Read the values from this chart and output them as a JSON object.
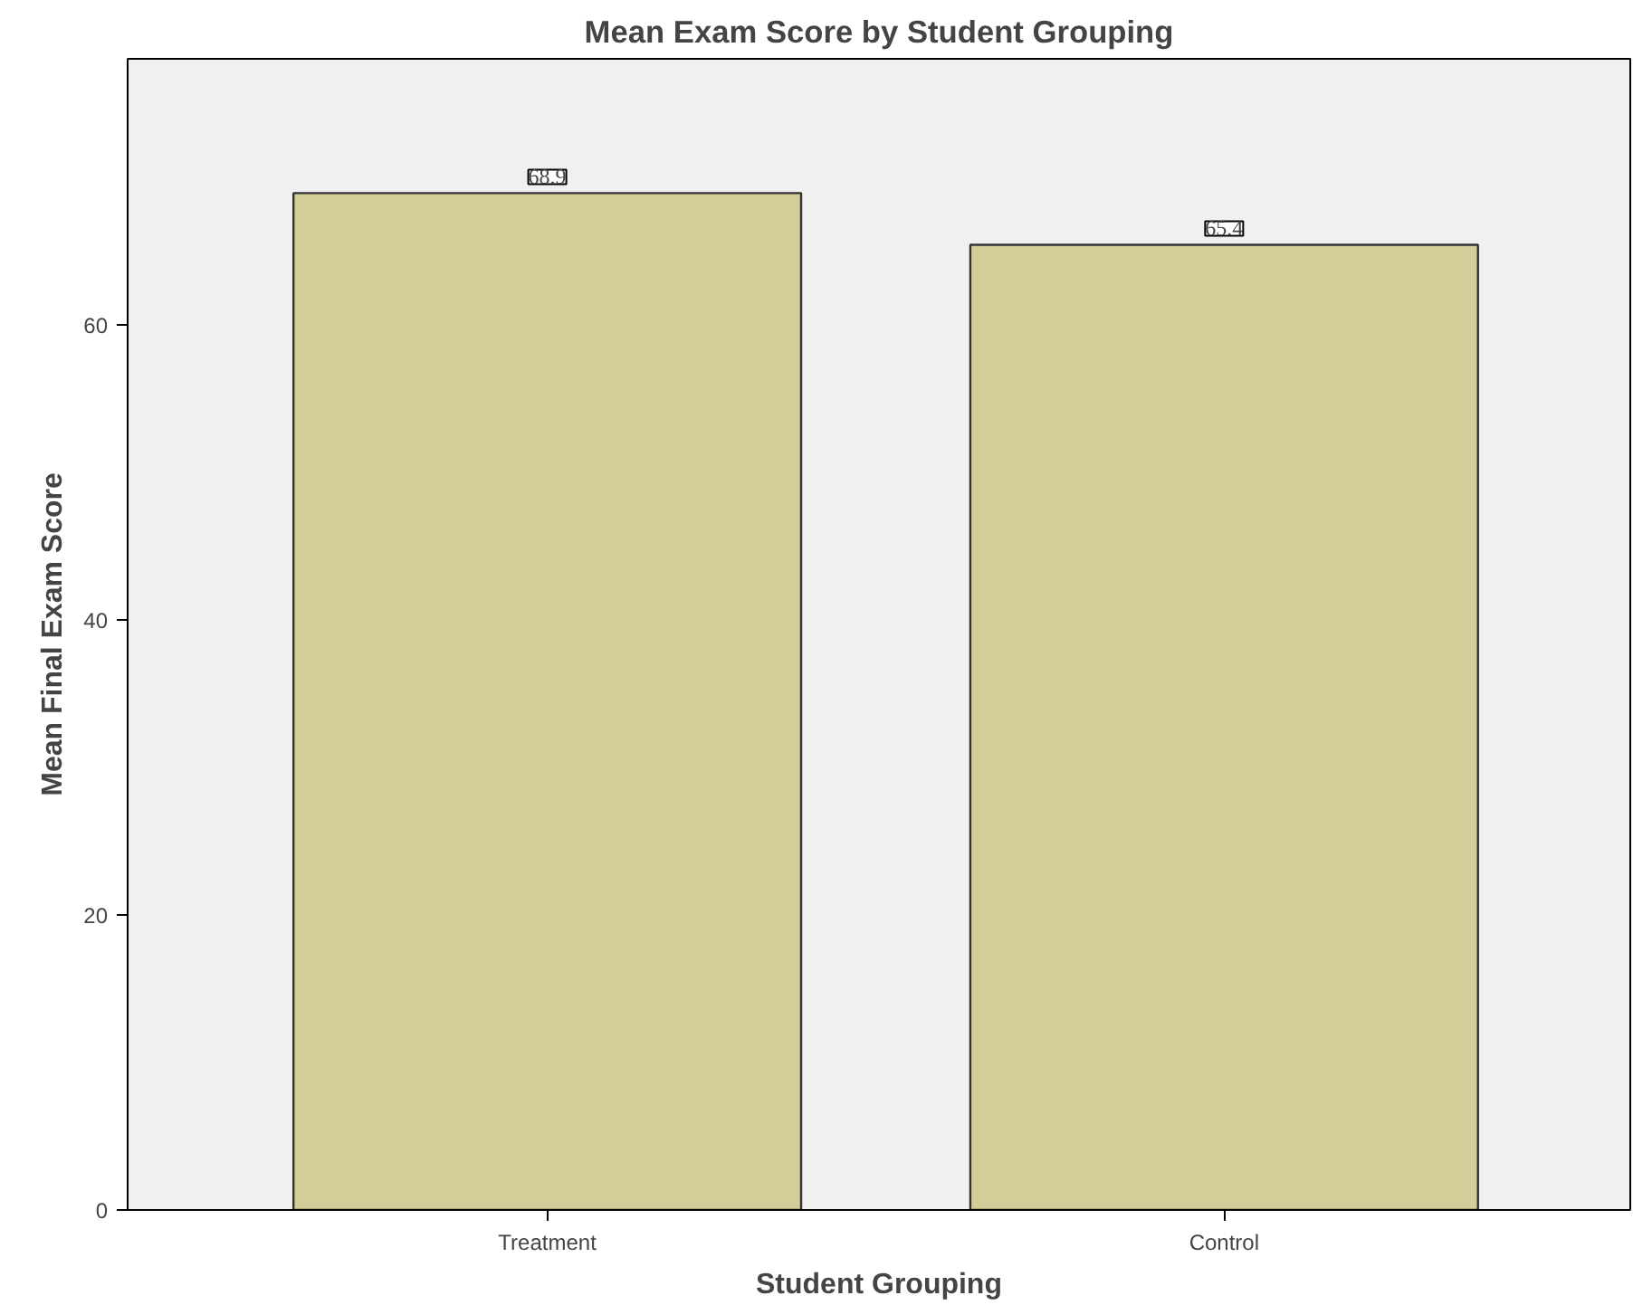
{
  "chart_data": {
    "type": "bar",
    "title": "Mean Exam Score by Student Grouping",
    "xlabel": "Student Grouping",
    "ylabel": "Mean Final Exam Score",
    "categories": [
      "Treatment",
      "Control"
    ],
    "values": [
      68.9,
      65.4
    ],
    "color": "#d3ce97",
    "ylim": [
      0,
      78
    ],
    "yticks": [
      0,
      20,
      40,
      60
    ],
    "grid": false,
    "data_labels": true
  }
}
